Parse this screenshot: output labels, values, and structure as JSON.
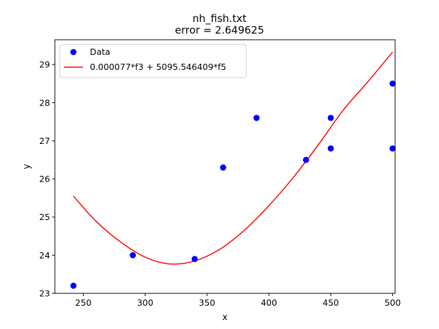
{
  "chart_data": {
    "type": "scatter",
    "title": "nh_fish.txt",
    "subtitle": "error  = 2.649625",
    "xlabel": "x",
    "ylabel": "y",
    "xlim": [
      227,
      502
    ],
    "ylim": [
      23,
      29.65
    ],
    "xticks": [
      250,
      300,
      350,
      400,
      450,
      500
    ],
    "yticks": [
      23,
      24,
      25,
      26,
      27,
      28,
      29
    ],
    "grid": false,
    "legend_position": "top-left",
    "series": [
      {
        "name": "Data",
        "kind": "points",
        "color": "#0000ff",
        "x": [
          242,
          290,
          340,
          363,
          390,
          430,
          450,
          450,
          500,
          500
        ],
        "y": [
          23.2,
          24.0,
          23.9,
          26.3,
          27.6,
          26.5,
          26.8,
          27.6,
          28.5,
          26.8
        ]
      },
      {
        "name": "0.000077*f3 + 5095.546409*f5",
        "kind": "curve",
        "color": "#ff0000",
        "x": [
          242,
          260,
          280,
          300,
          320,
          340,
          360,
          380,
          400,
          420,
          440,
          460,
          480,
          500
        ],
        "y": [
          25.55,
          24.9,
          24.35,
          23.95,
          23.77,
          23.85,
          24.15,
          24.65,
          25.3,
          26.05,
          26.9,
          27.8,
          28.55,
          29.33
        ]
      }
    ]
  }
}
